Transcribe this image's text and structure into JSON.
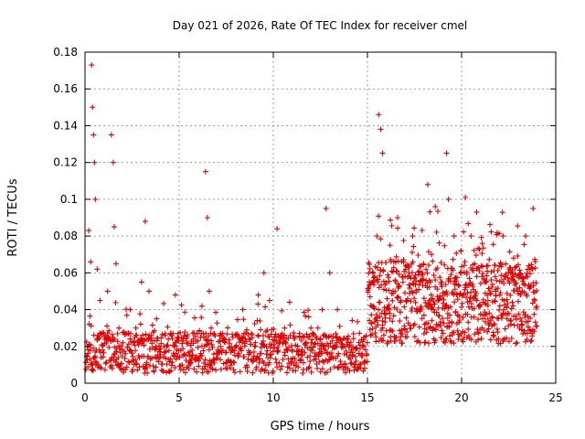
{
  "chart_data": {
    "type": "scatter",
    "title": "Day 021 of 2026, Rate Of TEC Index for receiver cmel",
    "xlabel": "GPS time / hours",
    "ylabel": "ROTI / TECUs",
    "xlim": [
      0,
      25
    ],
    "ylim": [
      0,
      0.18
    ],
    "xticks": [
      "0",
      "5",
      "10",
      "15",
      "20",
      "25"
    ],
    "yticks": [
      "0",
      "0.02",
      "0.04",
      "0.06",
      "0.08",
      "0.1",
      "0.12",
      "0.14",
      "0.16",
      "0.18"
    ],
    "grid": true,
    "marker": "+",
    "color": "#e00000",
    "series": [
      {
        "x": [
          0.1,
          0.2,
          0.3,
          0.35,
          0.4,
          0.45,
          0.5,
          0.55,
          0.65,
          0.8,
          1.2,
          1.4,
          1.5,
          1.55,
          1.65,
          1.8,
          2.4,
          2.7,
          3.0,
          3.2,
          3.4,
          3.8,
          4.2,
          4.8,
          5.2,
          5.6,
          6.2,
          6.4,
          6.5,
          6.6,
          6.7,
          7.2,
          7.8,
          8.4,
          9.2,
          9.5,
          9.8,
          10.2,
          10.6,
          11.4,
          12.0,
          12.6,
          12.8,
          13.0,
          13.4,
          13.8,
          14.2,
          14.8,
          15.1,
          15.3,
          15.5,
          15.6,
          15.7,
          15.8,
          16.2,
          16.6,
          17.0,
          17.4,
          17.8,
          18.2,
          18.4,
          18.6,
          18.9,
          19.2,
          19.3,
          19.6,
          20.0,
          20.2,
          20.5,
          20.8,
          21.1,
          21.4,
          21.8,
          22.2,
          22.6,
          23.0,
          23.4,
          23.8
        ],
        "y": [
          0.015,
          0.083,
          0.066,
          0.173,
          0.15,
          0.135,
          0.12,
          0.1,
          0.062,
          0.045,
          0.05,
          0.135,
          0.12,
          0.085,
          0.065,
          0.03,
          0.04,
          0.03,
          0.055,
          0.088,
          0.05,
          0.035,
          0.02,
          0.048,
          0.015,
          0.012,
          0.015,
          0.115,
          0.09,
          0.05,
          0.03,
          0.02,
          0.018,
          0.025,
          0.048,
          0.06,
          0.045,
          0.084,
          0.03,
          0.025,
          0.03,
          0.04,
          0.095,
          0.06,
          0.04,
          0.02,
          0.015,
          0.02,
          0.055,
          0.06,
          0.08,
          0.146,
          0.138,
          0.125,
          0.075,
          0.09,
          0.058,
          0.08,
          0.04,
          0.108,
          0.07,
          0.096,
          0.055,
          0.125,
          0.1,
          0.08,
          0.06,
          0.101,
          0.08,
          0.093,
          0.076,
          0.045,
          0.05,
          0.08,
          0.06,
          0.05,
          0.08,
          0.095
        ]
      }
    ]
  }
}
